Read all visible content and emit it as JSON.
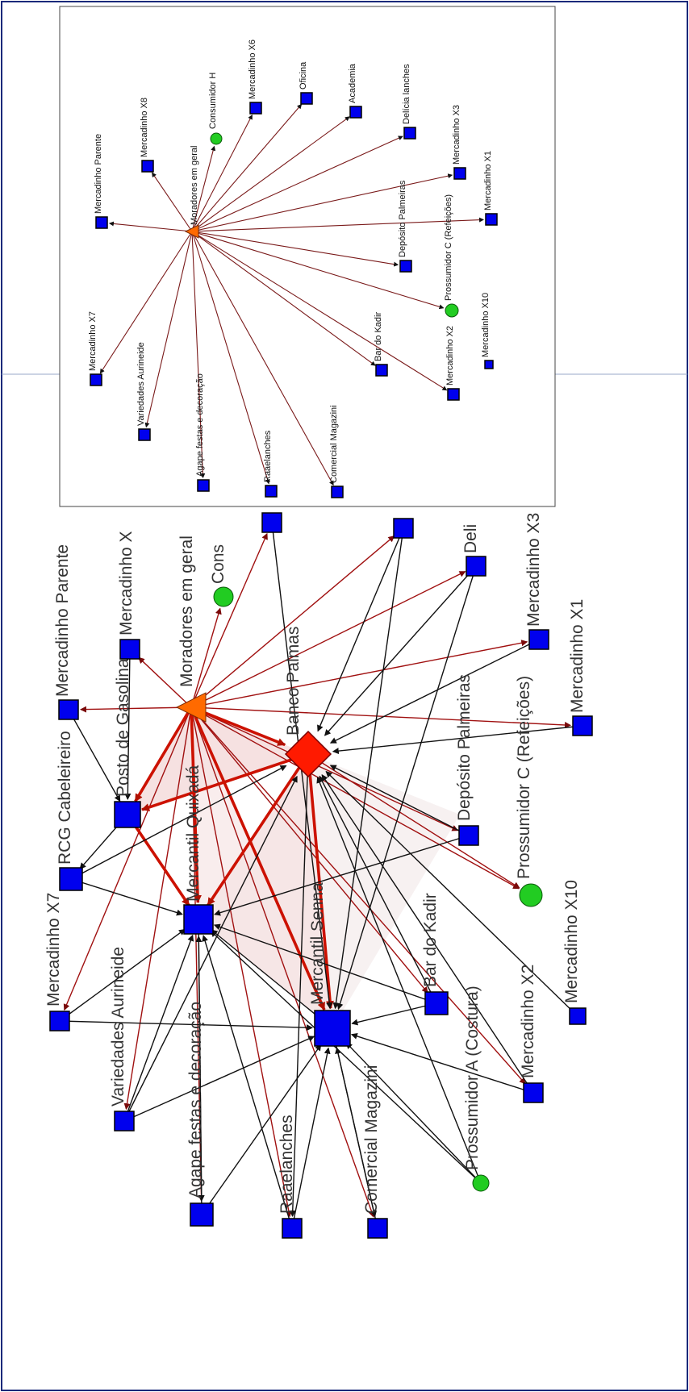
{
  "main_nodes": [
    {
      "id": "banco_palmas",
      "label": "Banco Palmas",
      "shape": "diamond",
      "color": "#ff1a00"
    },
    {
      "id": "moradores",
      "label": "Moradores em geral",
      "shape": "triangle",
      "color": "#ff6a00"
    },
    {
      "id": "mercantil_senna",
      "label": "Mercantil Senna",
      "shape": "square",
      "color": "#0000ee"
    },
    {
      "id": "mercantil_quixada",
      "label": "Mercantil Quixadá",
      "shape": "square",
      "color": "#0000ee"
    },
    {
      "id": "posto",
      "label": "Posto de Gasolina",
      "shape": "square",
      "color": "#0000ee"
    },
    {
      "id": "rcg",
      "label": "RCG Cabeleireiro",
      "shape": "square",
      "color": "#0000ee"
    },
    {
      "id": "parente",
      "label": "Mercadinho Parente",
      "shape": "square",
      "color": "#0000ee"
    },
    {
      "id": "x8",
      "label": "Mercadinho X",
      "shape": "square",
      "color": "#0000ee"
    },
    {
      "id": "cons_h",
      "label": "Cons",
      "shape": "circle",
      "color": "#22cc22"
    },
    {
      "id": "x6",
      "label": "",
      "shape": "square",
      "color": "#0000ee"
    },
    {
      "id": "oficina",
      "label": "",
      "shape": "square",
      "color": "#0000ee"
    },
    {
      "id": "delicia",
      "label": "Deli",
      "shape": "square",
      "color": "#0000ee"
    },
    {
      "id": "x3",
      "label": "Mercadinho X3",
      "shape": "square",
      "color": "#0000ee"
    },
    {
      "id": "x1",
      "label": "Mercadinho X1",
      "shape": "square",
      "color": "#0000ee"
    },
    {
      "id": "deposito",
      "label": "Depósito Palmeiras",
      "shape": "square",
      "color": "#0000ee"
    },
    {
      "id": "prossumidor_c",
      "label": "Prossumidor C (Refeições)",
      "shape": "circle",
      "color": "#22cc22"
    },
    {
      "id": "x10",
      "label": "Mercadinho X10",
      "shape": "square",
      "color": "#0000ee"
    },
    {
      "id": "x2",
      "label": "Mercadinho X2",
      "shape": "square",
      "color": "#0000ee"
    },
    {
      "id": "bar_kadir",
      "label": "Bar do Kadir",
      "shape": "square",
      "color": "#0000ee"
    },
    {
      "id": "prossumidor_a",
      "label": "Prossumidor A (Costura)",
      "shape": "circle",
      "color": "#22cc22"
    },
    {
      "id": "x7",
      "label": "Mercadinho X7",
      "shape": "square",
      "color": "#0000ee"
    },
    {
      "id": "variedades",
      "label": "Variedades Aurineide",
      "shape": "square",
      "color": "#0000ee"
    },
    {
      "id": "agape",
      "label": "Agape festas e decoração",
      "shape": "square",
      "color": "#0000ee"
    },
    {
      "id": "raaelanches",
      "label": "Raaelanches",
      "shape": "square",
      "color": "#0000ee"
    },
    {
      "id": "comercial",
      "label": "Comercial Magazini",
      "shape": "square",
      "color": "#0000ee"
    }
  ],
  "inset_nodes": [
    {
      "id": "moradores",
      "label": "Moradores em geral",
      "shape": "triangle",
      "color": "#ff6a00"
    },
    {
      "id": "parente",
      "label": "Mercadinho Parente",
      "shape": "square",
      "color": "#0000ee"
    },
    {
      "id": "x8",
      "label": "Mercadinho X8",
      "shape": "square",
      "color": "#0000ee"
    },
    {
      "id": "cons_h",
      "label": "Consumidor H",
      "shape": "circle",
      "color": "#22cc22"
    },
    {
      "id": "x6",
      "label": "Mercadinho X6",
      "shape": "square",
      "color": "#0000ee"
    },
    {
      "id": "oficina",
      "label": "Oficina",
      "shape": "square",
      "color": "#0000ee"
    },
    {
      "id": "academia",
      "label": "Academia",
      "shape": "square",
      "color": "#0000ee"
    },
    {
      "id": "delicia",
      "label": "Delícia lanches",
      "shape": "square",
      "color": "#0000ee"
    },
    {
      "id": "x3",
      "label": "Mercadinho X3",
      "shape": "square",
      "color": "#0000ee"
    },
    {
      "id": "x1",
      "label": "Mercadinho X1",
      "shape": "square",
      "color": "#0000ee"
    },
    {
      "id": "deposito",
      "label": "Depósito Palmeiras",
      "shape": "square",
      "color": "#0000ee"
    },
    {
      "id": "prossumidor_c",
      "label": "Prossumidor C (Refeições)",
      "shape": "circle",
      "color": "#22cc22"
    },
    {
      "id": "x10",
      "label": "Mercadinho X10",
      "shape": "square",
      "color": "#0000ee"
    },
    {
      "id": "x2",
      "label": "Mercadinho X2",
      "shape": "square",
      "color": "#0000ee"
    },
    {
      "id": "bar_kadir",
      "label": "Bar do Kadir",
      "shape": "square",
      "color": "#0000ee"
    },
    {
      "id": "comercial",
      "label": "Comercial Magazini",
      "shape": "square",
      "color": "#0000ee"
    },
    {
      "id": "raaelanches",
      "label": "Raaelanches",
      "shape": "square",
      "color": "#0000ee"
    },
    {
      "id": "agape",
      "label": "Agape festas e decoração",
      "shape": "square",
      "color": "#0000ee"
    },
    {
      "id": "variedades",
      "label": "Variedades Aurineide",
      "shape": "square",
      "color": "#0000ee"
    },
    {
      "id": "x7",
      "label": "Mercadinho X7",
      "shape": "square",
      "color": "#0000ee"
    }
  ],
  "main_edges": [
    {
      "from": "moradores",
      "to": "parente",
      "kind": "red"
    },
    {
      "from": "moradores",
      "to": "x8",
      "kind": "red"
    },
    {
      "from": "moradores",
      "to": "cons_h",
      "kind": "red"
    },
    {
      "from": "moradores",
      "to": "x6",
      "kind": "red"
    },
    {
      "from": "moradores",
      "to": "oficina",
      "kind": "red"
    },
    {
      "from": "moradores",
      "to": "delicia",
      "kind": "red"
    },
    {
      "from": "moradores",
      "to": "x3",
      "kind": "red"
    },
    {
      "from": "moradores",
      "to": "x1",
      "kind": "red"
    },
    {
      "from": "moradores",
      "to": "deposito",
      "kind": "red"
    },
    {
      "from": "moradores",
      "to": "prossumidor_c",
      "kind": "red"
    },
    {
      "from": "moradores",
      "to": "x7",
      "kind": "red"
    },
    {
      "from": "moradores",
      "to": "variedades",
      "kind": "red"
    },
    {
      "from": "moradores",
      "to": "agape",
      "kind": "red"
    },
    {
      "from": "moradores",
      "to": "raaelanches",
      "kind": "red"
    },
    {
      "from": "moradores",
      "to": "comercial",
      "kind": "red"
    },
    {
      "from": "moradores",
      "to": "bar_kadir",
      "kind": "red"
    },
    {
      "from": "moradores",
      "to": "x2",
      "kind": "red"
    },
    {
      "from": "moradores",
      "to": "banco_palmas",
      "kind": "thick"
    },
    {
      "from": "moradores",
      "to": "mercantil_quixada",
      "kind": "thick"
    },
    {
      "from": "moradores",
      "to": "mercantil_senna",
      "kind": "thick"
    },
    {
      "from": "moradores",
      "to": "posto",
      "kind": "thick"
    },
    {
      "from": "banco_palmas",
      "to": "posto",
      "kind": "thick"
    },
    {
      "from": "banco_palmas",
      "to": "mercantil_quixada",
      "kind": "thick"
    },
    {
      "from": "banco_palmas",
      "to": "mercantil_senna",
      "kind": "thick"
    },
    {
      "from": "banco_palmas",
      "to": "prossumidor_c",
      "kind": "red"
    },
    {
      "from": "posto",
      "to": "mercantil_quixada",
      "kind": "thick"
    },
    {
      "from": "x8",
      "to": "posto",
      "kind": "black"
    },
    {
      "from": "parente",
      "to": "posto",
      "kind": "black"
    },
    {
      "from": "posto",
      "to": "rcg",
      "kind": "black"
    },
    {
      "from": "rcg",
      "to": "mercantil_quixada",
      "kind": "black"
    },
    {
      "from": "rcg",
      "to": "banco_palmas",
      "kind": "black"
    },
    {
      "from": "x7",
      "to": "mercantil_quixada",
      "kind": "black"
    },
    {
      "from": "x7",
      "to": "mercantil_senna",
      "kind": "black"
    },
    {
      "from": "variedades",
      "to": "mercantil_quixada",
      "kind": "black"
    },
    {
      "from": "variedades",
      "to": "mercantil_senna",
      "kind": "black"
    },
    {
      "from": "variedades",
      "to": "banco_palmas",
      "kind": "black"
    },
    {
      "from": "agape",
      "to": "mercantil_quixada",
      "kind": "black"
    },
    {
      "from": "agape",
      "to": "mercantil_senna",
      "kind": "black"
    },
    {
      "from": "raaelanches",
      "to": "mercantil_quixada",
      "kind": "black"
    },
    {
      "from": "raaelanches",
      "to": "mercantil_senna",
      "kind": "black"
    },
    {
      "from": "comercial",
      "to": "mercantil_senna",
      "kind": "black"
    },
    {
      "from": "bar_kadir",
      "to": "mercantil_senna",
      "kind": "black"
    },
    {
      "from": "bar_kadir",
      "to": "mercantil_quixada",
      "kind": "black"
    },
    {
      "from": "bar_kadir",
      "to": "banco_palmas",
      "kind": "black"
    },
    {
      "from": "x2",
      "to": "banco_palmas",
      "kind": "black"
    },
    {
      "from": "x2",
      "to": "mercantil_senna",
      "kind": "black"
    },
    {
      "from": "deposito",
      "to": "banco_palmas",
      "kind": "black"
    },
    {
      "from": "deposito",
      "to": "mercantil_quixada",
      "kind": "black"
    },
    {
      "from": "x1",
      "to": "banco_palmas",
      "kind": "black"
    },
    {
      "from": "x3",
      "to": "banco_palmas",
      "kind": "black"
    },
    {
      "from": "delicia",
      "to": "banco_palmas",
      "kind": "black"
    },
    {
      "from": "delicia",
      "to": "mercantil_senna",
      "kind": "black"
    },
    {
      "from": "oficina",
      "to": "banco_palmas",
      "kind": "black"
    },
    {
      "from": "oficina",
      "to": "mercantil_senna",
      "kind": "black"
    },
    {
      "from": "x6",
      "to": "mercantil_senna",
      "kind": "black"
    },
    {
      "from": "mercantil_quixada",
      "to": "agape",
      "kind": "black"
    },
    {
      "from": "mercantil_senna",
      "to": "comercial",
      "kind": "black"
    },
    {
      "from": "banco_palmas",
      "to": "raaelanches",
      "kind": "black"
    },
    {
      "from": "prossumidor_a",
      "to": "mercantil_senna",
      "kind": "black"
    },
    {
      "from": "prossumidor_a",
      "to": "mercantil_quixada",
      "kind": "black"
    },
    {
      "from": "prossumidor_a",
      "to": "banco_palmas",
      "kind": "black"
    },
    {
      "from": "x10",
      "to": "banco_palmas",
      "kind": "black"
    },
    {
      "from": "mercantil_senna",
      "to": "mercantil_quixada",
      "kind": "black"
    }
  ],
  "inset_edges": [
    {
      "from": "moradores",
      "to": "parente"
    },
    {
      "from": "moradores",
      "to": "x8"
    },
    {
      "from": "moradores",
      "to": "cons_h"
    },
    {
      "from": "moradores",
      "to": "x6"
    },
    {
      "from": "moradores",
      "to": "oficina"
    },
    {
      "from": "moradores",
      "to": "academia"
    },
    {
      "from": "moradores",
      "to": "delicia"
    },
    {
      "from": "moradores",
      "to": "x3"
    },
    {
      "from": "moradores",
      "to": "x1"
    },
    {
      "from": "moradores",
      "to": "deposito"
    },
    {
      "from": "moradores",
      "to": "prossumidor_c"
    },
    {
      "from": "moradores",
      "to": "x2"
    },
    {
      "from": "moradores",
      "to": "bar_kadir"
    },
    {
      "from": "moradores",
      "to": "comercial"
    },
    {
      "from": "moradores",
      "to": "raaelanches"
    },
    {
      "from": "moradores",
      "to": "agape"
    },
    {
      "from": "moradores",
      "to": "variedades"
    },
    {
      "from": "moradores",
      "to": "x7"
    }
  ],
  "colors": {
    "red_edge": "#a01010",
    "thick_edge": "#cc1100",
    "black_edge": "#111111",
    "border": "#1a2a7a",
    "triangle_shade": "#f4d6d6"
  }
}
